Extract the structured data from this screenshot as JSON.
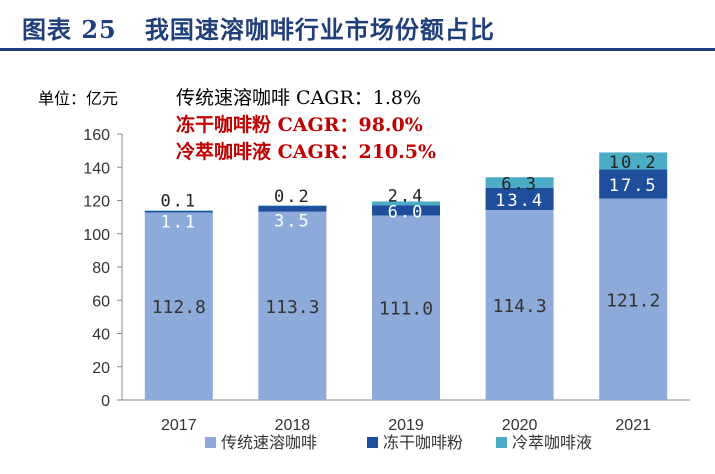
{
  "header": {
    "figure_number": "图表 25",
    "figure_title": "我国速溶咖啡行业市场份额占比"
  },
  "chart_data": {
    "type": "bar",
    "stacked": true,
    "unit_label": "单位：亿元",
    "categories": [
      "2017",
      "2018",
      "2019",
      "2020",
      "2021"
    ],
    "series": [
      {
        "name": "传统速溶咖啡",
        "color": "#8eaadb",
        "values": [
          112.8,
          113.3,
          111.0,
          114.3,
          121.2
        ],
        "labels": [
          "112.8",
          "113.3",
          "111.0",
          "114.3",
          "121.2"
        ]
      },
      {
        "name": "冻干咖啡粉",
        "color": "#1f4e9c",
        "values": [
          1.1,
          3.5,
          6.0,
          13.4,
          17.5
        ],
        "labels": [
          "1.1",
          "3.5",
          "6.0",
          "13.4",
          "17.5"
        ]
      },
      {
        "name": "冷萃咖啡液",
        "color": "#4bacc6",
        "values": [
          0.1,
          0.2,
          2.4,
          6.3,
          10.2
        ],
        "labels": [
          "0.1",
          "0.2",
          "2.4",
          "6.3",
          "10.2"
        ]
      }
    ],
    "ylim": [
      0,
      160
    ],
    "yticks": [
      "0",
      "20",
      "40",
      "60",
      "80",
      "100",
      "120",
      "140",
      "160"
    ],
    "annotations": [
      {
        "text": "传统速溶咖啡 CAGR：1.8%",
        "color": "#000000"
      },
      {
        "text": "冻干咖啡粉 CAGR：98.0%",
        "color": "#c00000"
      },
      {
        "text": "冷萃咖啡液 CAGR：210.5%",
        "color": "#c00000"
      }
    ],
    "legend_position": "bottom",
    "grid": false
  }
}
